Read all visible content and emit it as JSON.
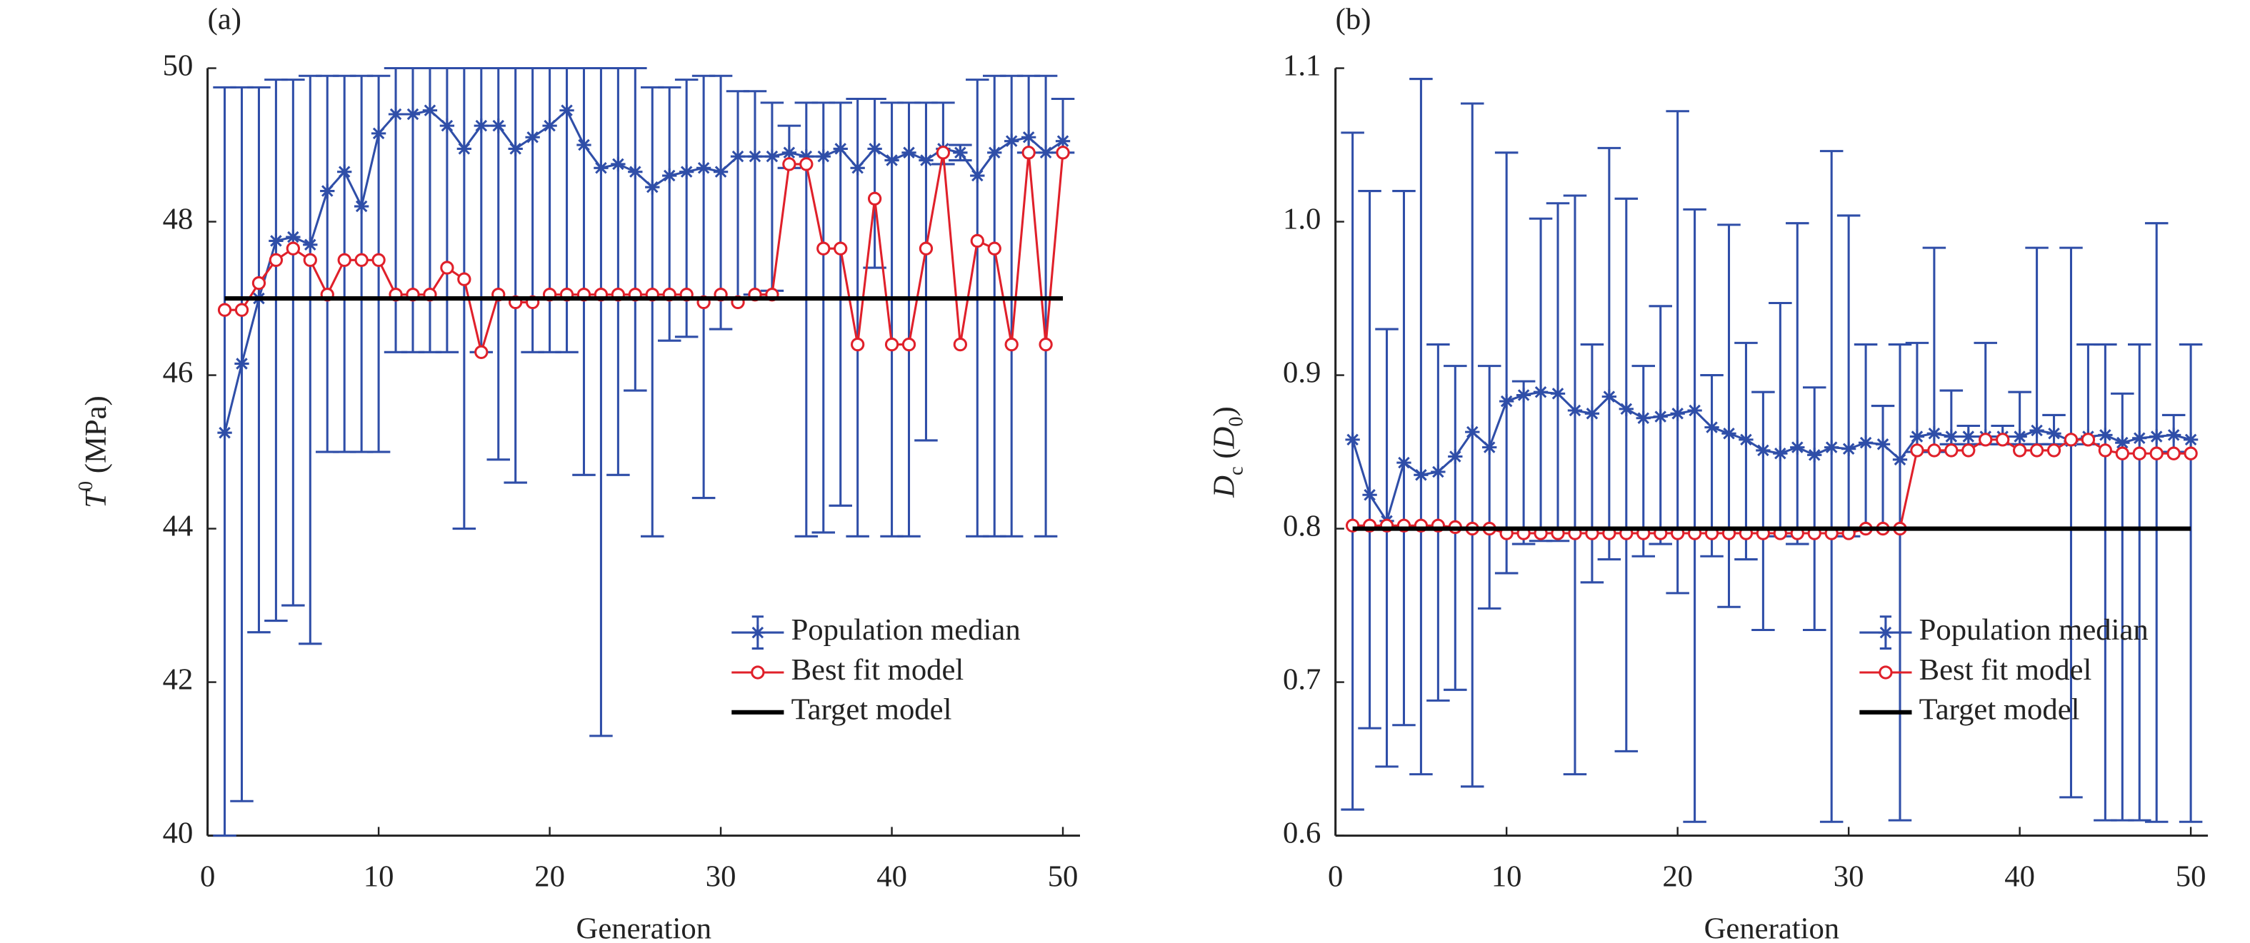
{
  "chart_data": [
    {
      "type": "line",
      "label": "(a)",
      "x_label": "Generation",
      "y_label": [
        "T",
        "0",
        " (MPa)"
      ],
      "x": [
        1,
        2,
        3,
        4,
        5,
        6,
        7,
        8,
        9,
        10,
        11,
        12,
        13,
        14,
        15,
        16,
        17,
        18,
        19,
        20,
        21,
        22,
        23,
        24,
        25,
        26,
        27,
        28,
        29,
        30,
        31,
        32,
        33,
        34,
        35,
        36,
        37,
        38,
        39,
        40,
        41,
        42,
        43,
        44,
        45,
        46,
        47,
        48,
        49,
        50
      ],
      "xlim": [
        0,
        51
      ],
      "xticks": [
        0,
        10,
        20,
        30,
        40,
        50
      ],
      "ylim": [
        40,
        50
      ],
      "yticks": [
        40,
        42,
        44,
        46,
        48,
        50
      ],
      "legend": "lower right",
      "series": [
        {
          "name": "Population median",
          "color": "#2f4ea8",
          "marker": "star",
          "values": [
            45.25,
            46.15,
            47.0,
            47.75,
            47.8,
            47.7,
            48.4,
            48.65,
            48.2,
            49.15,
            49.4,
            49.4,
            49.45,
            49.25,
            48.95,
            49.25,
            49.25,
            48.95,
            49.1,
            49.25,
            49.45,
            49.0,
            48.7,
            48.75,
            48.65,
            48.45,
            48.6,
            48.65,
            48.7,
            48.65,
            48.85,
            48.85,
            48.85,
            48.9,
            48.85,
            48.85,
            48.95,
            48.7,
            48.95,
            48.8,
            48.9,
            48.8,
            48.95,
            48.9,
            48.6,
            48.9,
            49.05,
            49.1,
            48.9,
            49.05
          ],
          "lower": [
            40,
            40.45,
            42.65,
            42.8,
            43.0,
            42.5,
            45.0,
            45.0,
            45.0,
            45.0,
            46.3,
            46.3,
            46.3,
            46.3,
            44.0,
            46.3,
            44.9,
            44.6,
            46.3,
            46.3,
            46.3,
            44.7,
            41.3,
            44.7,
            45.8,
            43.9,
            46.45,
            46.5,
            44.4,
            46.6,
            47.0,
            47.05,
            47.1,
            48.7,
            43.9,
            43.95,
            44.3,
            43.9,
            47.4,
            43.9,
            43.9,
            45.15,
            48.75,
            48.8,
            43.9,
            43.9,
            43.9,
            48.9,
            43.9,
            48.9
          ],
          "upper": [
            49.75,
            49.75,
            49.75,
            49.85,
            49.85,
            49.9,
            49.9,
            49.9,
            49.9,
            49.9,
            50,
            50,
            50,
            50,
            50,
            50,
            50,
            50,
            50,
            50,
            50,
            50,
            50,
            50,
            50,
            49.75,
            49.75,
            49.85,
            49.9,
            49.9,
            49.7,
            49.7,
            49.55,
            49.25,
            49.55,
            49.55,
            49.55,
            49.6,
            49.6,
            49.55,
            49.55,
            49.55,
            49.55,
            49.0,
            49.85,
            49.9,
            49.9,
            49.9,
            49.9,
            49.6
          ]
        },
        {
          "name": "Best fit model",
          "color": "#e0202a",
          "marker": "circle",
          "values": [
            46.85,
            46.85,
            47.2,
            47.5,
            47.65,
            47.5,
            47.05,
            47.5,
            47.5,
            47.5,
            47.05,
            47.05,
            47.05,
            47.4,
            47.25,
            46.3,
            47.05,
            46.95,
            46.95,
            47.05,
            47.05,
            47.05,
            47.05,
            47.05,
            47.05,
            47.05,
            47.05,
            47.05,
            46.95,
            47.05,
            46.95,
            47.05,
            47.05,
            48.75,
            48.75,
            47.65,
            47.65,
            46.4,
            48.3,
            46.4,
            46.4,
            47.65,
            48.9,
            46.4,
            47.75,
            47.65,
            46.4,
            48.9,
            46.4,
            48.9
          ]
        },
        {
          "name": "Target model",
          "color": "#000000",
          "x": [
            1,
            50
          ],
          "values": [
            47,
            47
          ]
        }
      ]
    },
    {
      "type": "line",
      "label": "(b)",
      "x_label": "Generation",
      "y_label": [
        "D",
        "c",
        " (",
        "D",
        "0",
        ")"
      ],
      "x": [
        1,
        2,
        3,
        4,
        5,
        6,
        7,
        8,
        9,
        10,
        11,
        12,
        13,
        14,
        15,
        16,
        17,
        18,
        19,
        20,
        21,
        22,
        23,
        24,
        25,
        26,
        27,
        28,
        29,
        30,
        31,
        32,
        33,
        34,
        35,
        36,
        37,
        38,
        39,
        40,
        41,
        42,
        43,
        44,
        45,
        46,
        47,
        48,
        49,
        50
      ],
      "xlim": [
        0,
        51
      ],
      "xticks": [
        0,
        10,
        20,
        30,
        40,
        50
      ],
      "ylim": [
        0.6,
        1.1
      ],
      "yticks": [
        0.6,
        0.7,
        0.8,
        0.9,
        {
          "value": 1,
          "label": "1.0"
        },
        1.1
      ],
      "legend": "lower right",
      "series": [
        {
          "name": "Population median",
          "color": "#2f4ea8",
          "marker": "star",
          "values": [
            0.858,
            0.822,
            0.805,
            0.843,
            0.835,
            0.837,
            0.847,
            0.863,
            0.853,
            0.883,
            0.887,
            0.889,
            0.888,
            0.877,
            0.875,
            0.886,
            0.878,
            0.872,
            0.873,
            0.875,
            0.877,
            0.866,
            0.862,
            0.858,
            0.851,
            0.849,
            0.853,
            0.848,
            0.853,
            0.852,
            0.856,
            0.855,
            0.845,
            0.86,
            0.862,
            0.86,
            0.86,
            0.86,
            0.86,
            0.86,
            0.864,
            0.862,
            0.857,
            0.86,
            0.861,
            0.856,
            0.859,
            0.86,
            0.861,
            0.858
          ],
          "lower": [
            0.617,
            0.67,
            0.645,
            0.672,
            0.64,
            0.688,
            0.695,
            0.632,
            0.748,
            0.771,
            0.79,
            0.792,
            0.792,
            0.64,
            0.765,
            0.78,
            0.655,
            0.782,
            0.79,
            0.758,
            0.609,
            0.782,
            0.749,
            0.78,
            0.734,
            0.795,
            0.79,
            0.734,
            0.609,
            0.795,
            0.8,
            0.8,
            0.61,
            0.85,
            0.85,
            0.855,
            0.855,
            0.855,
            0.855,
            0.855,
            0.855,
            0.855,
            0.625,
            0.855,
            0.61,
            0.61,
            0.61,
            0.609,
            0.85,
            0.609
          ],
          "upper": [
            1.058,
            1.02,
            0.93,
            1.02,
            1.093,
            0.92,
            0.906,
            1.077,
            0.906,
            1.045,
            0.896,
            1.002,
            1.012,
            1.017,
            0.92,
            1.048,
            1.015,
            0.906,
            0.945,
            1.072,
            1.008,
            0.9,
            0.998,
            0.921,
            0.889,
            0.947,
            0.999,
            0.892,
            1.046,
            1.004,
            0.92,
            0.88,
            0.92,
            0.921,
            0.983,
            0.89,
            0.867,
            0.921,
            0.867,
            0.889,
            0.983,
            0.874,
            0.983,
            0.92,
            0.92,
            0.888,
            0.92,
            0.999,
            0.874,
            0.92
          ]
        },
        {
          "name": "Best fit model",
          "color": "#e0202a",
          "marker": "circle",
          "values": [
            0.802,
            0.802,
            0.802,
            0.802,
            0.802,
            0.802,
            0.801,
            0.8,
            0.8,
            0.797,
            0.797,
            0.797,
            0.797,
            0.797,
            0.797,
            0.797,
            0.797,
            0.797,
            0.797,
            0.797,
            0.797,
            0.797,
            0.797,
            0.797,
            0.797,
            0.797,
            0.797,
            0.797,
            0.797,
            0.797,
            0.8,
            0.8,
            0.8,
            0.851,
            0.851,
            0.851,
            0.851,
            0.858,
            0.858,
            0.851,
            0.851,
            0.851,
            0.858,
            0.858,
            0.851,
            0.849,
            0.849,
            0.849,
            0.849,
            0.849
          ]
        },
        {
          "name": "Target model",
          "color": "#000000",
          "x": [
            1,
            50
          ],
          "values": [
            0.8,
            0.8
          ]
        }
      ]
    }
  ]
}
